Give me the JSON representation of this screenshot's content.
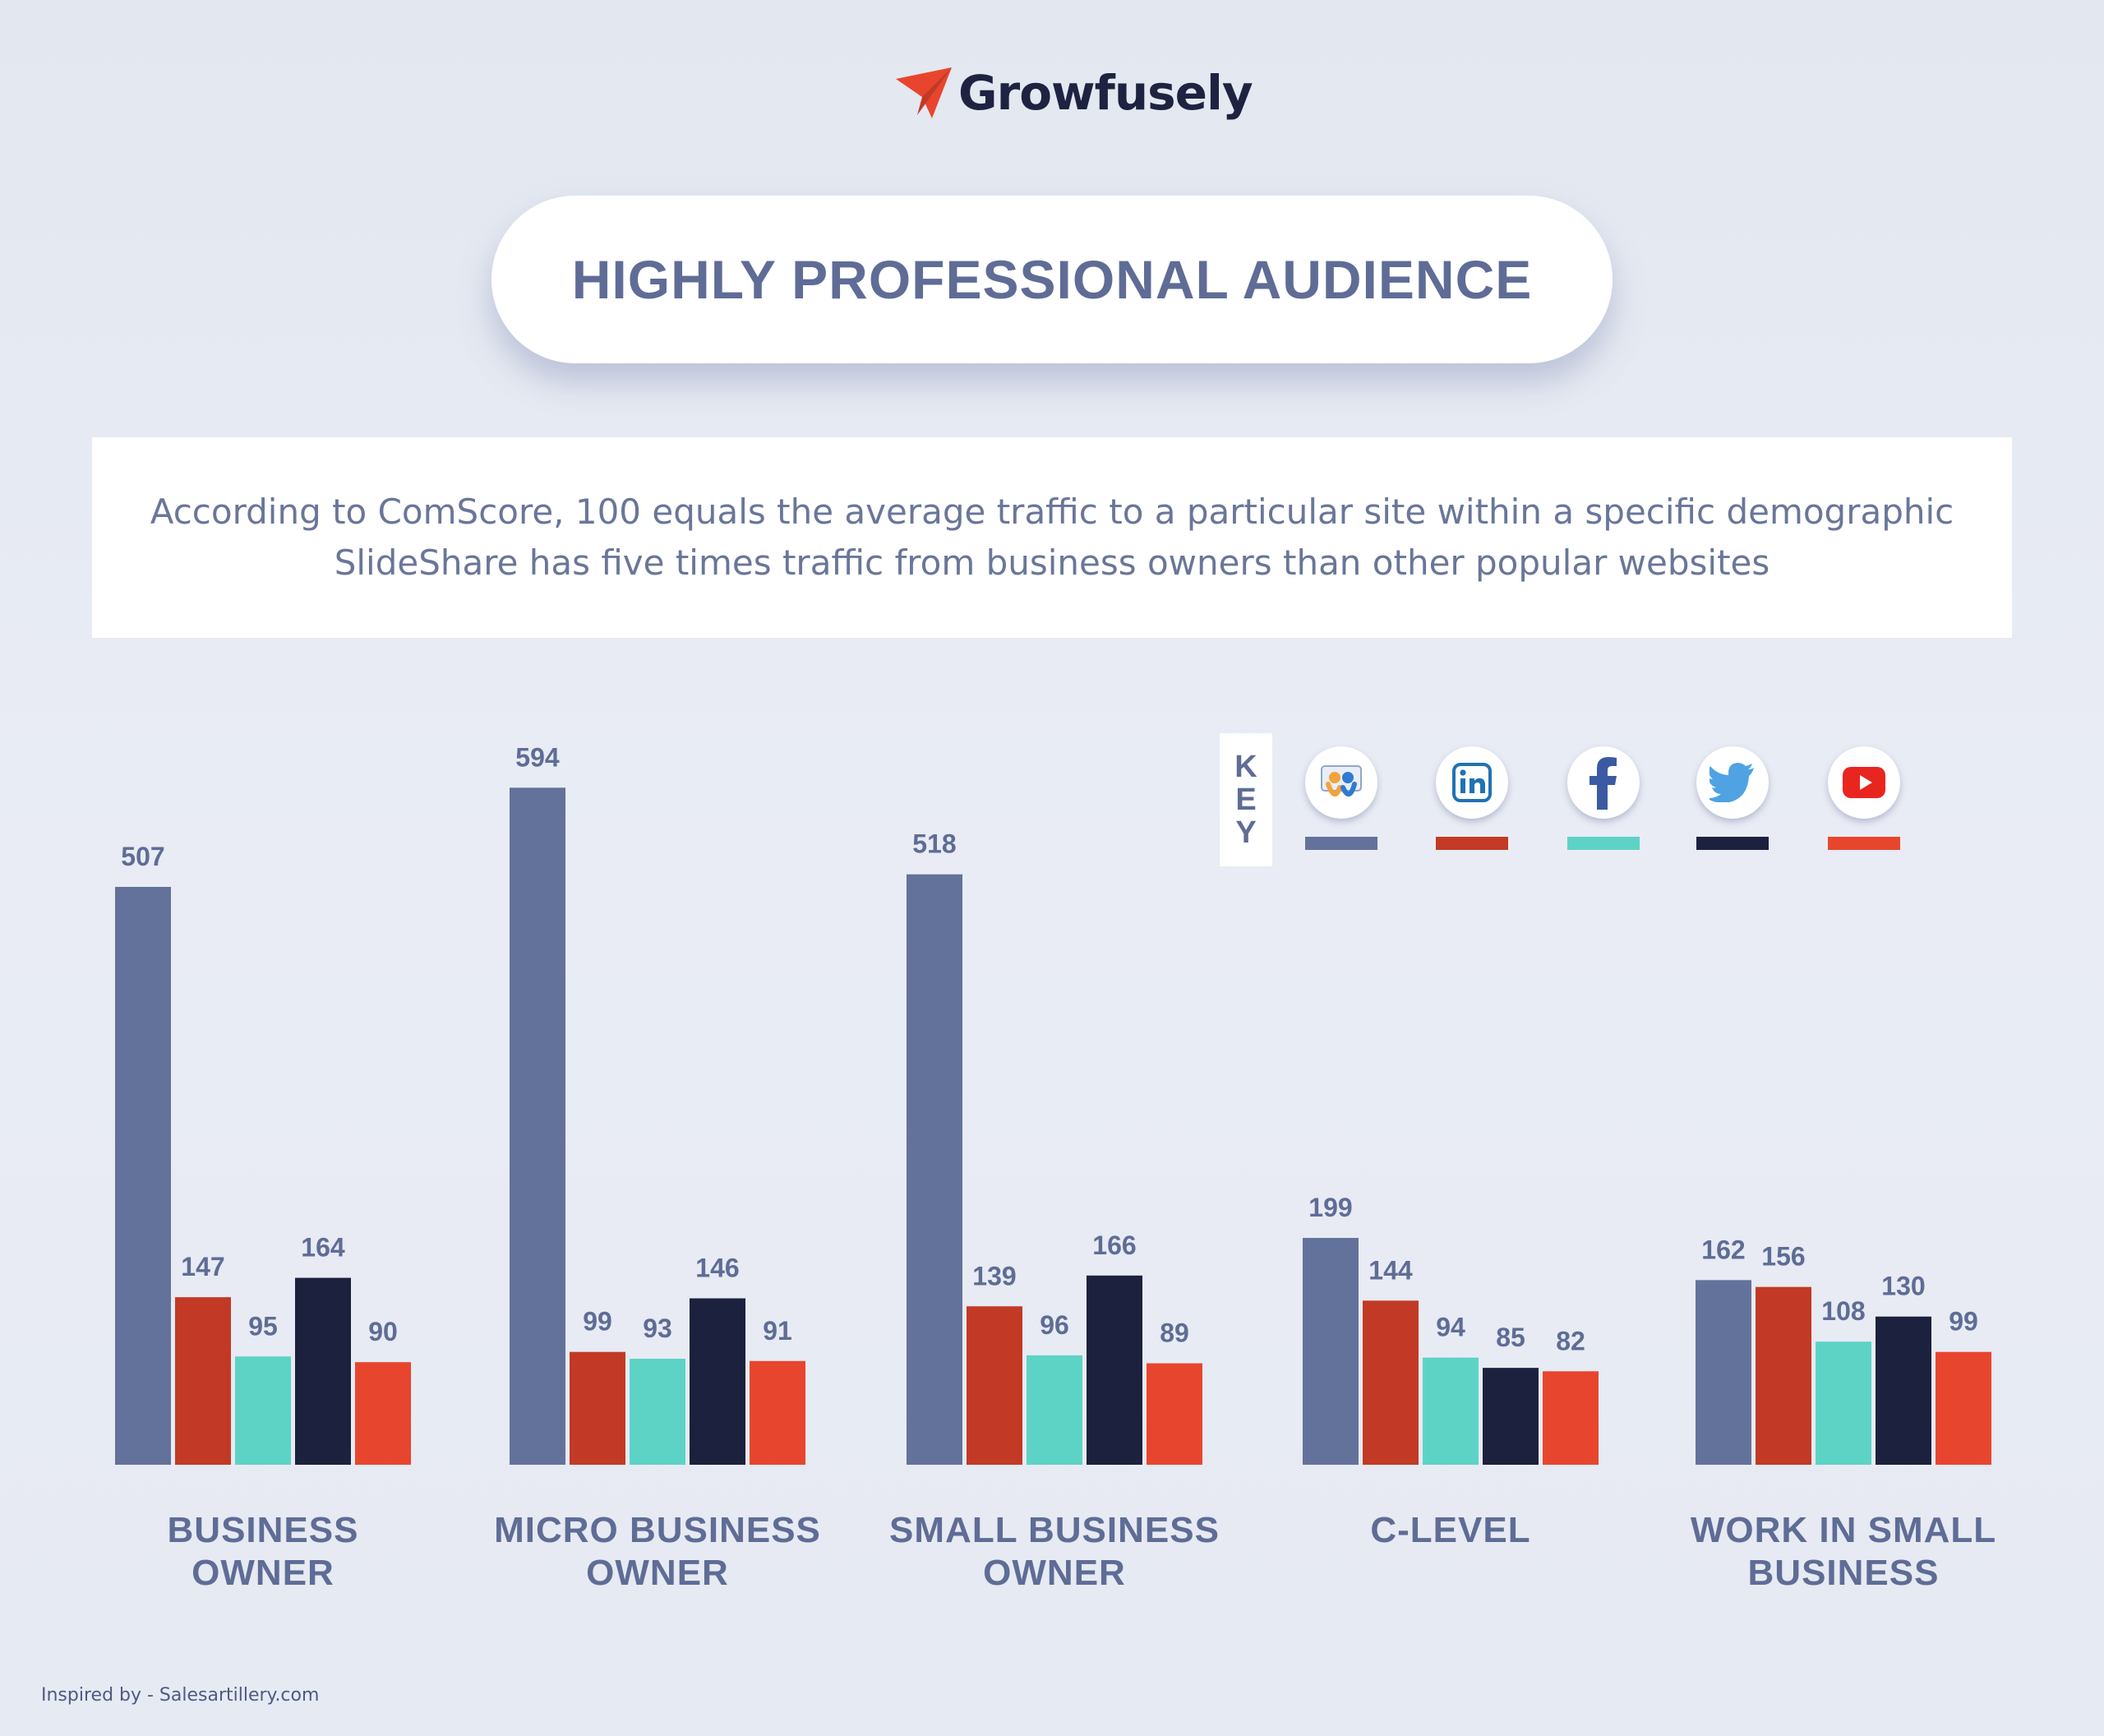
{
  "brand": {
    "name": "Growfusely",
    "accent": "#e8452e"
  },
  "title": "HIGHLY PROFESSIONAL AUDIENCE",
  "description": {
    "line1": "According to ComScore, 100 equals the average traffic to a particular site within a specific demographic",
    "line2": "SlideShare has five times traffic from business owners than other popular websites"
  },
  "key": {
    "label": [
      "K",
      "E",
      "Y"
    ],
    "items": [
      {
        "name": "SlideShare",
        "icon": "slideshare-icon",
        "color": "#63729b"
      },
      {
        "name": "LinkedIn",
        "icon": "linkedin-icon",
        "color": "#c23a25"
      },
      {
        "name": "Facebook",
        "icon": "facebook-icon",
        "color": "#5dd3c6"
      },
      {
        "name": "Twitter",
        "icon": "twitter-icon",
        "color": "#1c213e"
      },
      {
        "name": "YouTube",
        "icon": "youtube-icon",
        "color": "#e8452e"
      }
    ]
  },
  "chart_data": {
    "type": "bar",
    "title": "HIGHLY PROFESSIONAL AUDIENCE",
    "xlabel": "",
    "ylabel": "",
    "ylim": [
      0,
      600
    ],
    "grid": false,
    "categories": [
      [
        "BUSINESS",
        "OWNER"
      ],
      [
        "MICRO BUSINESS",
        "OWNER"
      ],
      [
        "SMALL BUSINESS",
        "OWNER"
      ],
      [
        "C-LEVEL"
      ],
      [
        "WORK IN SMALL",
        "BUSINESS"
      ]
    ],
    "series": [
      {
        "name": "SlideShare",
        "color": "#63729b",
        "values": [
          507,
          594,
          518,
          199,
          162
        ]
      },
      {
        "name": "LinkedIn",
        "color": "#c23a25",
        "values": [
          147,
          99,
          139,
          144,
          156
        ]
      },
      {
        "name": "Facebook",
        "color": "#5dd3c6",
        "values": [
          95,
          93,
          96,
          94,
          108
        ]
      },
      {
        "name": "Twitter",
        "color": "#1c213e",
        "values": [
          164,
          146,
          166,
          85,
          130
        ]
      },
      {
        "name": "YouTube",
        "color": "#e8452e",
        "values": [
          90,
          91,
          89,
          82,
          99
        ]
      }
    ]
  },
  "footer": "Inspired by - Salesartillery.com"
}
